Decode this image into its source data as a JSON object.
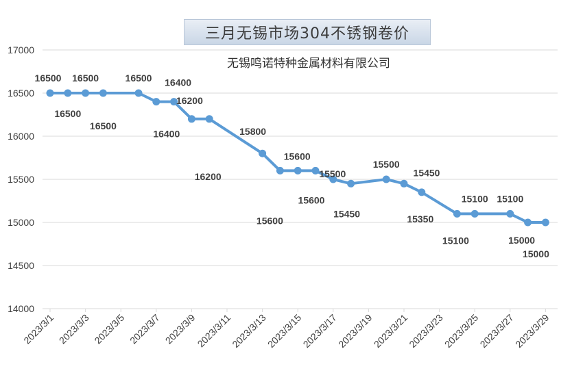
{
  "chart_data": {
    "type": "line",
    "title": "三月无锡市场304不锈钢卷价",
    "subtitle": "无锡鸣诺特种金属材料有限公司",
    "xlabel": "",
    "ylabel": "",
    "ylim": [
      14000,
      17000
    ],
    "yticks": [
      "17000",
      "16500",
      "16000",
      "15500",
      "15000",
      "14500",
      "14000"
    ],
    "grid": "horizontal",
    "legend": "none",
    "line_color": "#5b9bd5",
    "x_tick_labels": [
      "2023/3/1",
      "2023/3/3",
      "2023/3/5",
      "2023/3/7",
      "2023/3/9",
      "2023/3/11",
      "2023/3/13",
      "2023/3/15",
      "2023/3/17",
      "2023/3/19",
      "2023/3/21",
      "2023/3/23",
      "2023/3/25",
      "2023/3/27",
      "2023/3/29"
    ],
    "points": [
      {
        "date": "2023/3/1",
        "value": 16500,
        "label": "16500"
      },
      {
        "date": "2023/3/2",
        "value": 16500,
        "label": "16500"
      },
      {
        "date": "2023/3/3",
        "value": 16500,
        "label": "16500"
      },
      {
        "date": "2023/3/4",
        "value": 16500,
        "label": "16500"
      },
      {
        "date": "2023/3/6",
        "value": 16500,
        "label": "16500"
      },
      {
        "date": "2023/3/7",
        "value": 16400,
        "label": "16400"
      },
      {
        "date": "2023/3/8",
        "value": 16400,
        "label": "16400"
      },
      {
        "date": "2023/3/9",
        "value": 16200,
        "label": "16200"
      },
      {
        "date": "2023/3/10",
        "value": 16200,
        "label": "16200"
      },
      {
        "date": "2023/3/13",
        "value": 15800,
        "label": "15800"
      },
      {
        "date": "2023/3/14",
        "value": 15600,
        "label": "15600"
      },
      {
        "date": "2023/3/15",
        "value": 15600,
        "label": "15600"
      },
      {
        "date": "2023/3/16",
        "value": 15600,
        "label": "15600"
      },
      {
        "date": "2023/3/17",
        "value": 15500,
        "label": "15500"
      },
      {
        "date": "2023/3/18",
        "value": 15450,
        "label": "15450"
      },
      {
        "date": "2023/3/20",
        "value": 15500,
        "label": "15500"
      },
      {
        "date": "2023/3/21",
        "value": 15450,
        "label": "15450"
      },
      {
        "date": "2023/3/22",
        "value": 15350,
        "label": "15350"
      },
      {
        "date": "2023/3/24",
        "value": 15100,
        "label": "15100"
      },
      {
        "date": "2023/3/25",
        "value": 15100,
        "label": "15100"
      },
      {
        "date": "2023/3/27",
        "value": 15100,
        "label": "15100"
      },
      {
        "date": "2023/3/28",
        "value": 15000,
        "label": "15000"
      },
      {
        "date": "2023/3/29",
        "value": 15000,
        "label": "15000"
      }
    ]
  }
}
